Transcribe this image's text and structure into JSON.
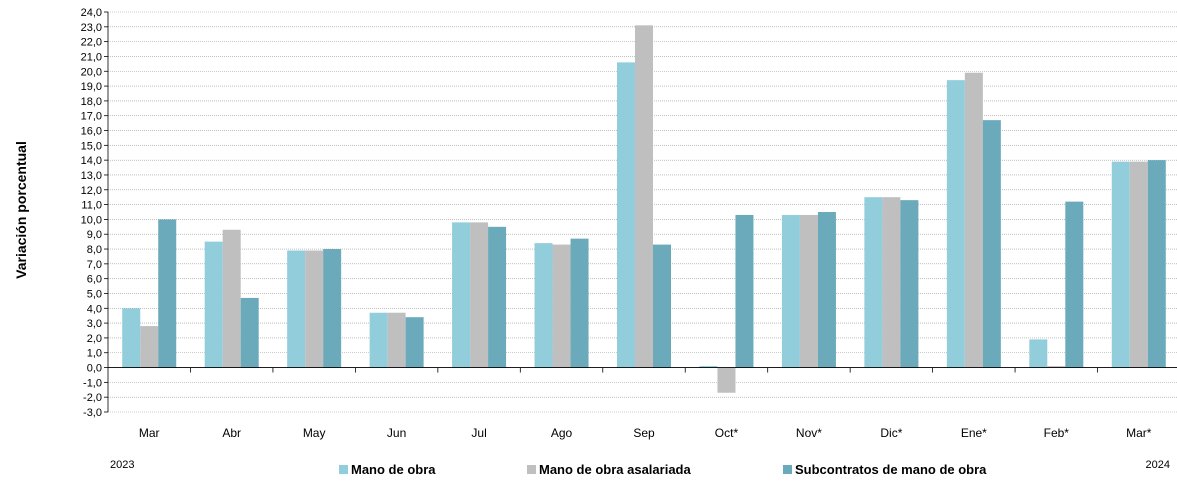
{
  "chart_data": {
    "type": "bar",
    "ylabel": "Variación porcentual",
    "ylim": [
      -3,
      24
    ],
    "ytick_step": 1,
    "grid": true,
    "legend_position": "bottom",
    "categories": [
      "Mar",
      "Abr",
      "May",
      "Jun",
      "Jul",
      "Ago",
      "Sep",
      "Oct*",
      "Nov*",
      "Dic*",
      "Ene*",
      "Feb*",
      "Mar*"
    ],
    "year_labels": {
      "start": "2023",
      "end": "2024"
    },
    "series": [
      {
        "name": "Mano de obra",
        "color": "#92CDDC",
        "values": [
          4.0,
          8.5,
          7.9,
          3.7,
          9.8,
          8.4,
          20.6,
          0.1,
          10.3,
          11.5,
          19.4,
          1.9,
          13.9
        ]
      },
      {
        "name": "Mano de obra asalariada",
        "color": "#BFBFBF",
        "values": [
          2.8,
          9.3,
          7.9,
          3.7,
          9.8,
          8.3,
          23.1,
          -1.7,
          10.3,
          11.5,
          19.9,
          0.1,
          13.9
        ]
      },
      {
        "name": "Subcontratos de mano de obra",
        "color": "#6AAABB",
        "values": [
          10.0,
          4.7,
          8.0,
          3.4,
          9.5,
          8.7,
          8.3,
          10.3,
          10.5,
          11.3,
          16.7,
          11.2,
          14.0
        ]
      }
    ]
  }
}
